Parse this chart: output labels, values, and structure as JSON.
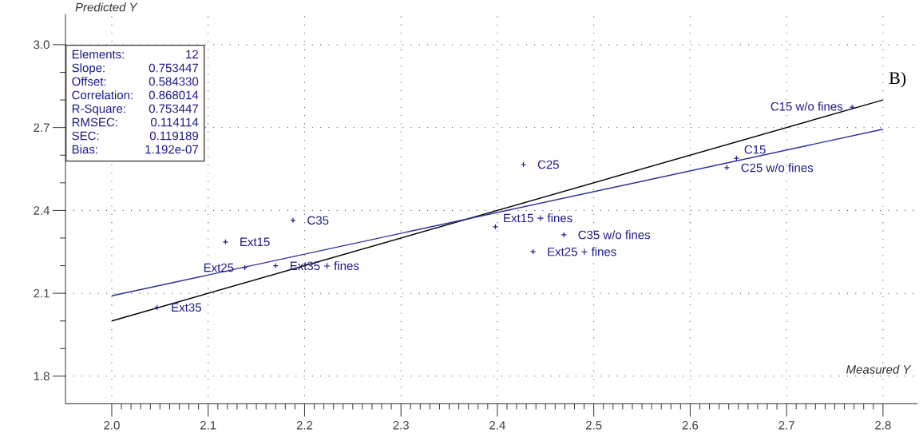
{
  "chart_data": {
    "type": "scatter",
    "xlabel": "Measured Y",
    "ylabel": "Predicted Y",
    "xlim": [
      1.952,
      2.836
    ],
    "ylim": [
      1.7,
      3.11
    ],
    "xticks": [
      {
        "value": 2.0,
        "label": "2.0"
      },
      {
        "value": 2.1,
        "label": "2.1"
      },
      {
        "value": 2.2,
        "label": "2.2"
      },
      {
        "value": 2.3,
        "label": "2.3"
      },
      {
        "value": 2.4,
        "label": "2.4"
      },
      {
        "value": 2.5,
        "label": "2.5"
      },
      {
        "value": 2.6,
        "label": "2.6"
      },
      {
        "value": 2.7,
        "label": "2.7"
      },
      {
        "value": 2.8,
        "label": "2.8"
      }
    ],
    "yticks": [
      {
        "value": 1.8,
        "label": "1.8"
      },
      {
        "value": 2.1,
        "label": "2.1"
      },
      {
        "value": 2.4,
        "label": "2.4"
      },
      {
        "value": 2.7,
        "label": "2.7"
      },
      {
        "value": 3.0,
        "label": "3.0"
      }
    ],
    "grid": true,
    "series": [
      {
        "marker": "cross",
        "color": "#1c1c8a",
        "x": [
          2.188,
          2.118,
          2.138,
          2.17,
          2.047,
          2.427,
          2.398,
          2.469,
          2.437,
          2.768,
          2.648,
          2.638
        ],
        "values": [
          2.364,
          2.286,
          2.193,
          2.2,
          2.049,
          2.566,
          2.341,
          2.312,
          2.251,
          2.774,
          2.589,
          2.555
        ]
      },
      {
        "type": "line",
        "marker": "none",
        "color": "#000000",
        "x": [
          2.0,
          2.8
        ],
        "values": [
          2.0,
          2.8
        ]
      },
      {
        "type": "line",
        "marker": "none",
        "color": "#2b2b9b",
        "x": [
          2.0,
          2.8
        ],
        "values": [
          2.091,
          2.694
        ]
      }
    ],
    "annotations": [
      "Elements:",
      "12",
      "Slope:",
      "0.753447",
      "Offset:",
      "0.584330",
      "Correlation:",
      "0.868014",
      "R-Square:",
      "0.753447",
      "RMSEC:",
      "0.114114",
      "SEC:",
      "0.119189",
      "Bias:",
      "1.192e-07",
      "B)",
      {
        "text": "C35",
        "x": 2.188,
        "y": 2.364
      },
      {
        "text": "Ext15",
        "x": 2.118,
        "y": 2.286
      },
      {
        "text": "Ext25",
        "x": 2.138,
        "y": 2.193
      },
      {
        "text": "Ext35 + fines",
        "x": 2.17,
        "y": 2.2
      },
      {
        "text": "Ext35",
        "x": 2.047,
        "y": 2.049
      },
      {
        "text": "C25",
        "x": 2.427,
        "y": 2.566
      },
      {
        "text": "Ext15 + fines",
        "x": 2.398,
        "y": 2.341
      },
      {
        "text": "C35 w/o fines",
        "x": 2.469,
        "y": 2.312
      },
      {
        "text": "Ext25 + fines",
        "x": 2.437,
        "y": 2.251
      },
      {
        "text": "C15 w/o fines",
        "x": 2.768,
        "y": 2.774
      },
      {
        "text": "C15",
        "x": 2.648,
        "y": 2.589
      },
      {
        "text": "C25 w/o fines",
        "x": 2.638,
        "y": 2.555
      }
    ]
  }
}
